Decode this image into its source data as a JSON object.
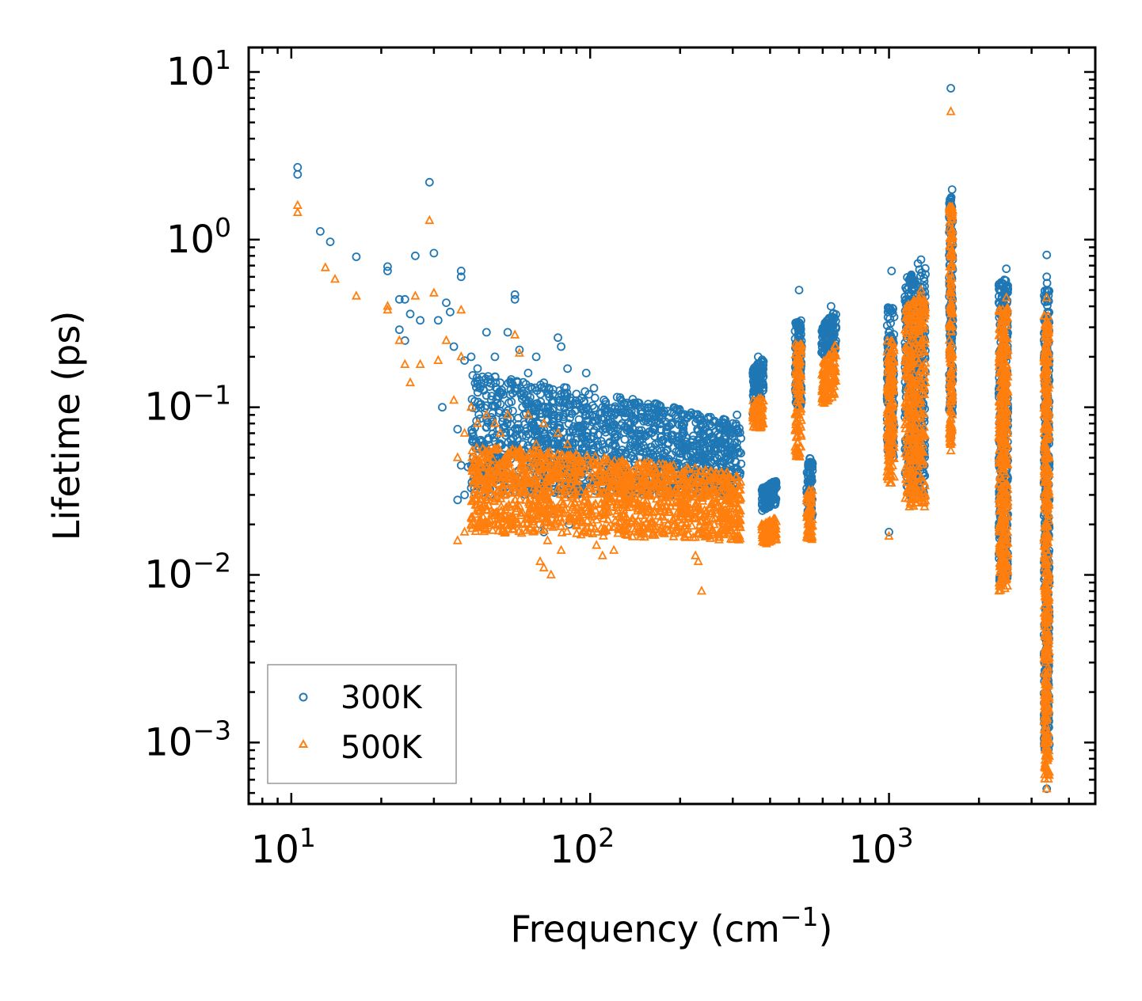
{
  "chart_data": {
    "type": "scatter",
    "title": "",
    "xlabel": "Frequency (cm",
    "xlabel_sup": "−1",
    "xlabel_tail": ")",
    "ylabel": "Lifetime (ps)",
    "xscale": "log",
    "yscale": "log",
    "xlim": [
      7.2,
      4900
    ],
    "ylim": [
      0.00043,
      14
    ],
    "x_tick_labels": [
      {
        "value": 10,
        "base": "10",
        "exp": "1"
      },
      {
        "value": 100,
        "base": "10",
        "exp": "2"
      },
      {
        "value": 1000,
        "base": "10",
        "exp": "3"
      }
    ],
    "y_tick_labels": [
      {
        "value": 10,
        "base": "10",
        "exp": "1"
      },
      {
        "value": 1,
        "base": "10",
        "exp": "0"
      },
      {
        "value": 0.1,
        "base": "10",
        "exp": "−1"
      },
      {
        "value": 0.01,
        "base": "10",
        "exp": "−2"
      },
      {
        "value": 0.001,
        "base": "10",
        "exp": "−3"
      }
    ],
    "legend_position": "lower-left",
    "series": [
      {
        "name": "300K",
        "marker": "circle",
        "color": "#1f77b4",
        "points": [
          [
            10.5,
            2.7
          ],
          [
            10.5,
            2.45
          ],
          [
            12.5,
            1.12
          ],
          [
            13.5,
            0.97
          ],
          [
            16.5,
            0.79
          ],
          [
            21,
            0.69
          ],
          [
            21,
            0.65
          ],
          [
            23,
            0.44
          ],
          [
            24,
            0.44
          ],
          [
            23,
            0.29
          ],
          [
            24,
            0.25
          ],
          [
            25,
            0.36
          ],
          [
            26,
            0.8
          ],
          [
            27,
            0.33
          ],
          [
            29,
            2.2
          ],
          [
            30,
            0.83
          ],
          [
            31,
            0.33
          ],
          [
            33,
            0.42
          ],
          [
            34,
            0.37
          ],
          [
            35,
            0.23
          ],
          [
            37,
            0.65
          ],
          [
            37,
            0.6
          ],
          [
            38,
            0.19
          ],
          [
            40,
            0.2
          ],
          [
            42,
            0.17
          ],
          [
            45,
            0.28
          ],
          [
            48,
            0.2
          ],
          [
            50,
            0.14
          ],
          [
            53,
            0.28
          ],
          [
            56,
            0.47
          ],
          [
            56,
            0.44
          ],
          [
            58,
            0.22
          ],
          [
            62,
            0.16
          ],
          [
            66,
            0.2
          ],
          [
            70,
            0.14
          ],
          [
            75,
            0.12
          ],
          [
            78,
            0.26
          ],
          [
            80,
            0.23
          ],
          [
            84,
            0.17
          ],
          [
            92,
            0.11
          ],
          [
            97,
            0.16
          ],
          [
            103,
            0.13
          ],
          [
            110,
            0.1
          ],
          [
            118,
            0.09
          ],
          [
            128,
            0.08
          ],
          [
            138,
            0.07
          ],
          [
            150,
            0.065
          ],
          [
            165,
            0.06
          ],
          [
            180,
            0.055
          ],
          [
            200,
            0.05
          ],
          [
            220,
            0.048
          ],
          [
            240,
            0.05
          ],
          [
            260,
            0.055
          ],
          [
            280,
            0.06
          ],
          [
            300,
            0.07
          ],
          [
            36,
            0.028
          ],
          [
            38,
            0.03
          ],
          [
            40,
            0.033
          ],
          [
            37,
            0.045
          ],
          [
            39,
            0.044
          ],
          [
            42,
            0.035
          ],
          [
            68,
            0.02
          ],
          [
            70,
            0.018
          ],
          [
            74,
            0.024
          ],
          [
            76,
            0.023
          ],
          [
            85,
            0.02
          ],
          [
            36,
            0.074
          ],
          [
            32,
            0.1
          ],
          [
            60,
            0.09
          ],
          [
            65,
            0.1
          ],
          [
            90,
            0.12
          ],
          [
            120,
            0.075
          ],
          [
            160,
            0.07
          ],
          [
            230,
            0.04
          ],
          [
            235,
            0.03
          ],
          [
            310,
            0.09
          ],
          [
            1000,
            0.018
          ],
          [
            1610,
            0.073
          ],
          [
            1610,
            0.068
          ],
          [
            3370,
            0.81
          ],
          [
            2470,
            0.67
          ],
          [
            3370,
            0.6
          ],
          [
            3380,
            0.55
          ],
          [
            1610,
            8.0
          ],
          [
            1020,
            0.65
          ],
          [
            500,
            0.5
          ],
          [
            1280,
            0.76
          ],
          [
            1250,
            0.72
          ],
          [
            640,
            0.4
          ],
          [
            365,
            0.2
          ]
        ],
        "bands": [
          {
            "x_min": 40,
            "x_max": 320,
            "y_min_start": 0.03,
            "y_min_end": 0.03,
            "y_max_start": 0.16,
            "y_max_end": 0.08,
            "count": 1400
          },
          {
            "x_min": 350,
            "x_max": 380,
            "y_min_start": 0.09,
            "y_min_end": 0.12,
            "y_max_start": 0.17,
            "y_max_end": 0.2,
            "count": 110
          },
          {
            "x_min": 375,
            "x_max": 420,
            "y_min_start": 0.024,
            "y_min_end": 0.026,
            "y_max_start": 0.033,
            "y_max_end": 0.037,
            "count": 110
          },
          {
            "x_min": 485,
            "x_max": 510,
            "y_min_start": 0.1,
            "y_min_end": 0.1,
            "y_max_start": 0.33,
            "y_max_end": 0.33,
            "count": 110
          },
          {
            "x_min": 530,
            "x_max": 555,
            "y_min_start": 0.022,
            "y_min_end": 0.022,
            "y_max_start": 0.05,
            "y_max_end": 0.05,
            "count": 70
          },
          {
            "x_min": 595,
            "x_max": 665,
            "y_min_start": 0.2,
            "y_min_end": 0.22,
            "y_max_start": 0.3,
            "y_max_end": 0.38,
            "count": 120
          },
          {
            "x_min": 985,
            "x_max": 1040,
            "y_min_start": 0.05,
            "y_min_end": 0.05,
            "y_max_start": 0.4,
            "y_max_end": 0.4,
            "count": 160
          },
          {
            "x_min": 1130,
            "x_max": 1325,
            "y_min_start": 0.03,
            "y_min_end": 0.03,
            "y_max_start": 0.6,
            "y_max_end": 0.7,
            "count": 380
          },
          {
            "x_min": 1590,
            "x_max": 1635,
            "y_min_start": 0.09,
            "y_min_end": 0.09,
            "y_max_start": 2.0,
            "y_max_end": 2.0,
            "count": 160
          },
          {
            "x_min": 2330,
            "x_max": 2500,
            "y_min_start": 0.009,
            "y_min_end": 0.009,
            "y_max_start": 0.55,
            "y_max_end": 0.6,
            "count": 380
          },
          {
            "x_min": 3300,
            "x_max": 3440,
            "y_min_start": 0.0009,
            "y_min_end": 0.0009,
            "y_max_start": 0.5,
            "y_max_end": 0.5,
            "count": 440
          }
        ]
      },
      {
        "name": "500K",
        "marker": "triangle",
        "color": "#ff7f0e",
        "points": [
          [
            10.5,
            1.6
          ],
          [
            10.5,
            1.45
          ],
          [
            13,
            0.68
          ],
          [
            14,
            0.58
          ],
          [
            16.5,
            0.46
          ],
          [
            21,
            0.4
          ],
          [
            21,
            0.38
          ],
          [
            23,
            0.25
          ],
          [
            24,
            0.18
          ],
          [
            25,
            0.14
          ],
          [
            26,
            0.46
          ],
          [
            27,
            0.18
          ],
          [
            29,
            1.3
          ],
          [
            30,
            0.48
          ],
          [
            31,
            0.19
          ],
          [
            33,
            0.25
          ],
          [
            35,
            0.11
          ],
          [
            37,
            0.38
          ],
          [
            37,
            0.2
          ],
          [
            38,
            0.07
          ],
          [
            40,
            0.1
          ],
          [
            42,
            0.08
          ],
          [
            45,
            0.09
          ],
          [
            48,
            0.08
          ],
          [
            50,
            0.07
          ],
          [
            53,
            0.09
          ],
          [
            56,
            0.27
          ],
          [
            58,
            0.21
          ],
          [
            62,
            0.09
          ],
          [
            66,
            0.06
          ],
          [
            70,
            0.08
          ],
          [
            78,
            0.07
          ],
          [
            84,
            0.06
          ],
          [
            92,
            0.05
          ],
          [
            103,
            0.045
          ],
          [
            118,
            0.045
          ],
          [
            128,
            0.04
          ],
          [
            36,
            0.016
          ],
          [
            38,
            0.018
          ],
          [
            40,
            0.02
          ],
          [
            36,
            0.05
          ],
          [
            40,
            0.022
          ],
          [
            68,
            0.012
          ],
          [
            70,
            0.011
          ],
          [
            72,
            0.016
          ],
          [
            74,
            0.01
          ],
          [
            80,
            0.014
          ],
          [
            105,
            0.015
          ],
          [
            110,
            0.013
          ],
          [
            120,
            0.014
          ],
          [
            236,
            0.008
          ],
          [
            230,
            0.012
          ],
          [
            225,
            0.013
          ],
          [
            310,
            0.03
          ],
          [
            1000,
            0.017
          ],
          [
            1610,
            0.055
          ],
          [
            1610,
            0.06
          ],
          [
            1000,
            0.04
          ],
          [
            1610,
            5.8
          ],
          [
            2470,
            0.45
          ],
          [
            3370,
            0.45
          ],
          [
            1280,
            0.5
          ]
        ],
        "bands": [
          {
            "x_min": 40,
            "x_max": 320,
            "y_min_start": 0.018,
            "y_min_end": 0.016,
            "y_max_start": 0.06,
            "y_max_end": 0.04,
            "count": 1400
          },
          {
            "x_min": 350,
            "x_max": 380,
            "y_min_start": 0.075,
            "y_min_end": 0.075,
            "y_max_start": 0.11,
            "y_max_end": 0.12,
            "count": 90
          },
          {
            "x_min": 375,
            "x_max": 420,
            "y_min_start": 0.015,
            "y_min_end": 0.016,
            "y_max_start": 0.02,
            "y_max_end": 0.022,
            "count": 110
          },
          {
            "x_min": 485,
            "x_max": 510,
            "y_min_start": 0.05,
            "y_min_end": 0.05,
            "y_max_start": 0.24,
            "y_max_end": 0.24,
            "count": 110
          },
          {
            "x_min": 530,
            "x_max": 555,
            "y_min_start": 0.016,
            "y_min_end": 0.016,
            "y_max_start": 0.032,
            "y_max_end": 0.032,
            "count": 70
          },
          {
            "x_min": 595,
            "x_max": 665,
            "y_min_start": 0.1,
            "y_min_end": 0.12,
            "y_max_start": 0.18,
            "y_max_end": 0.24,
            "count": 120
          },
          {
            "x_min": 985,
            "x_max": 1040,
            "y_min_start": 0.035,
            "y_min_end": 0.035,
            "y_max_start": 0.25,
            "y_max_end": 0.25,
            "count": 160
          },
          {
            "x_min": 1130,
            "x_max": 1325,
            "y_min_start": 0.025,
            "y_min_end": 0.025,
            "y_max_start": 0.4,
            "y_max_end": 0.5,
            "count": 380
          },
          {
            "x_min": 1590,
            "x_max": 1635,
            "y_min_start": 0.06,
            "y_min_end": 0.06,
            "y_max_start": 1.6,
            "y_max_end": 1.6,
            "count": 160
          },
          {
            "x_min": 2330,
            "x_max": 2500,
            "y_min_start": 0.008,
            "y_min_end": 0.008,
            "y_max_start": 0.4,
            "y_max_end": 0.4,
            "count": 380
          },
          {
            "x_min": 3300,
            "x_max": 3440,
            "y_min_start": 0.0006,
            "y_min_end": 0.0006,
            "y_max_start": 0.35,
            "y_max_end": 0.35,
            "count": 440
          }
        ]
      }
    ],
    "extra_marks": [
      {
        "series": "300K",
        "x": 3370,
        "y": 0.00053
      },
      {
        "series": "500K",
        "x": 3370,
        "y": 0.00053
      },
      {
        "series": "500K",
        "x": 3370,
        "y": 0.0007
      }
    ]
  }
}
